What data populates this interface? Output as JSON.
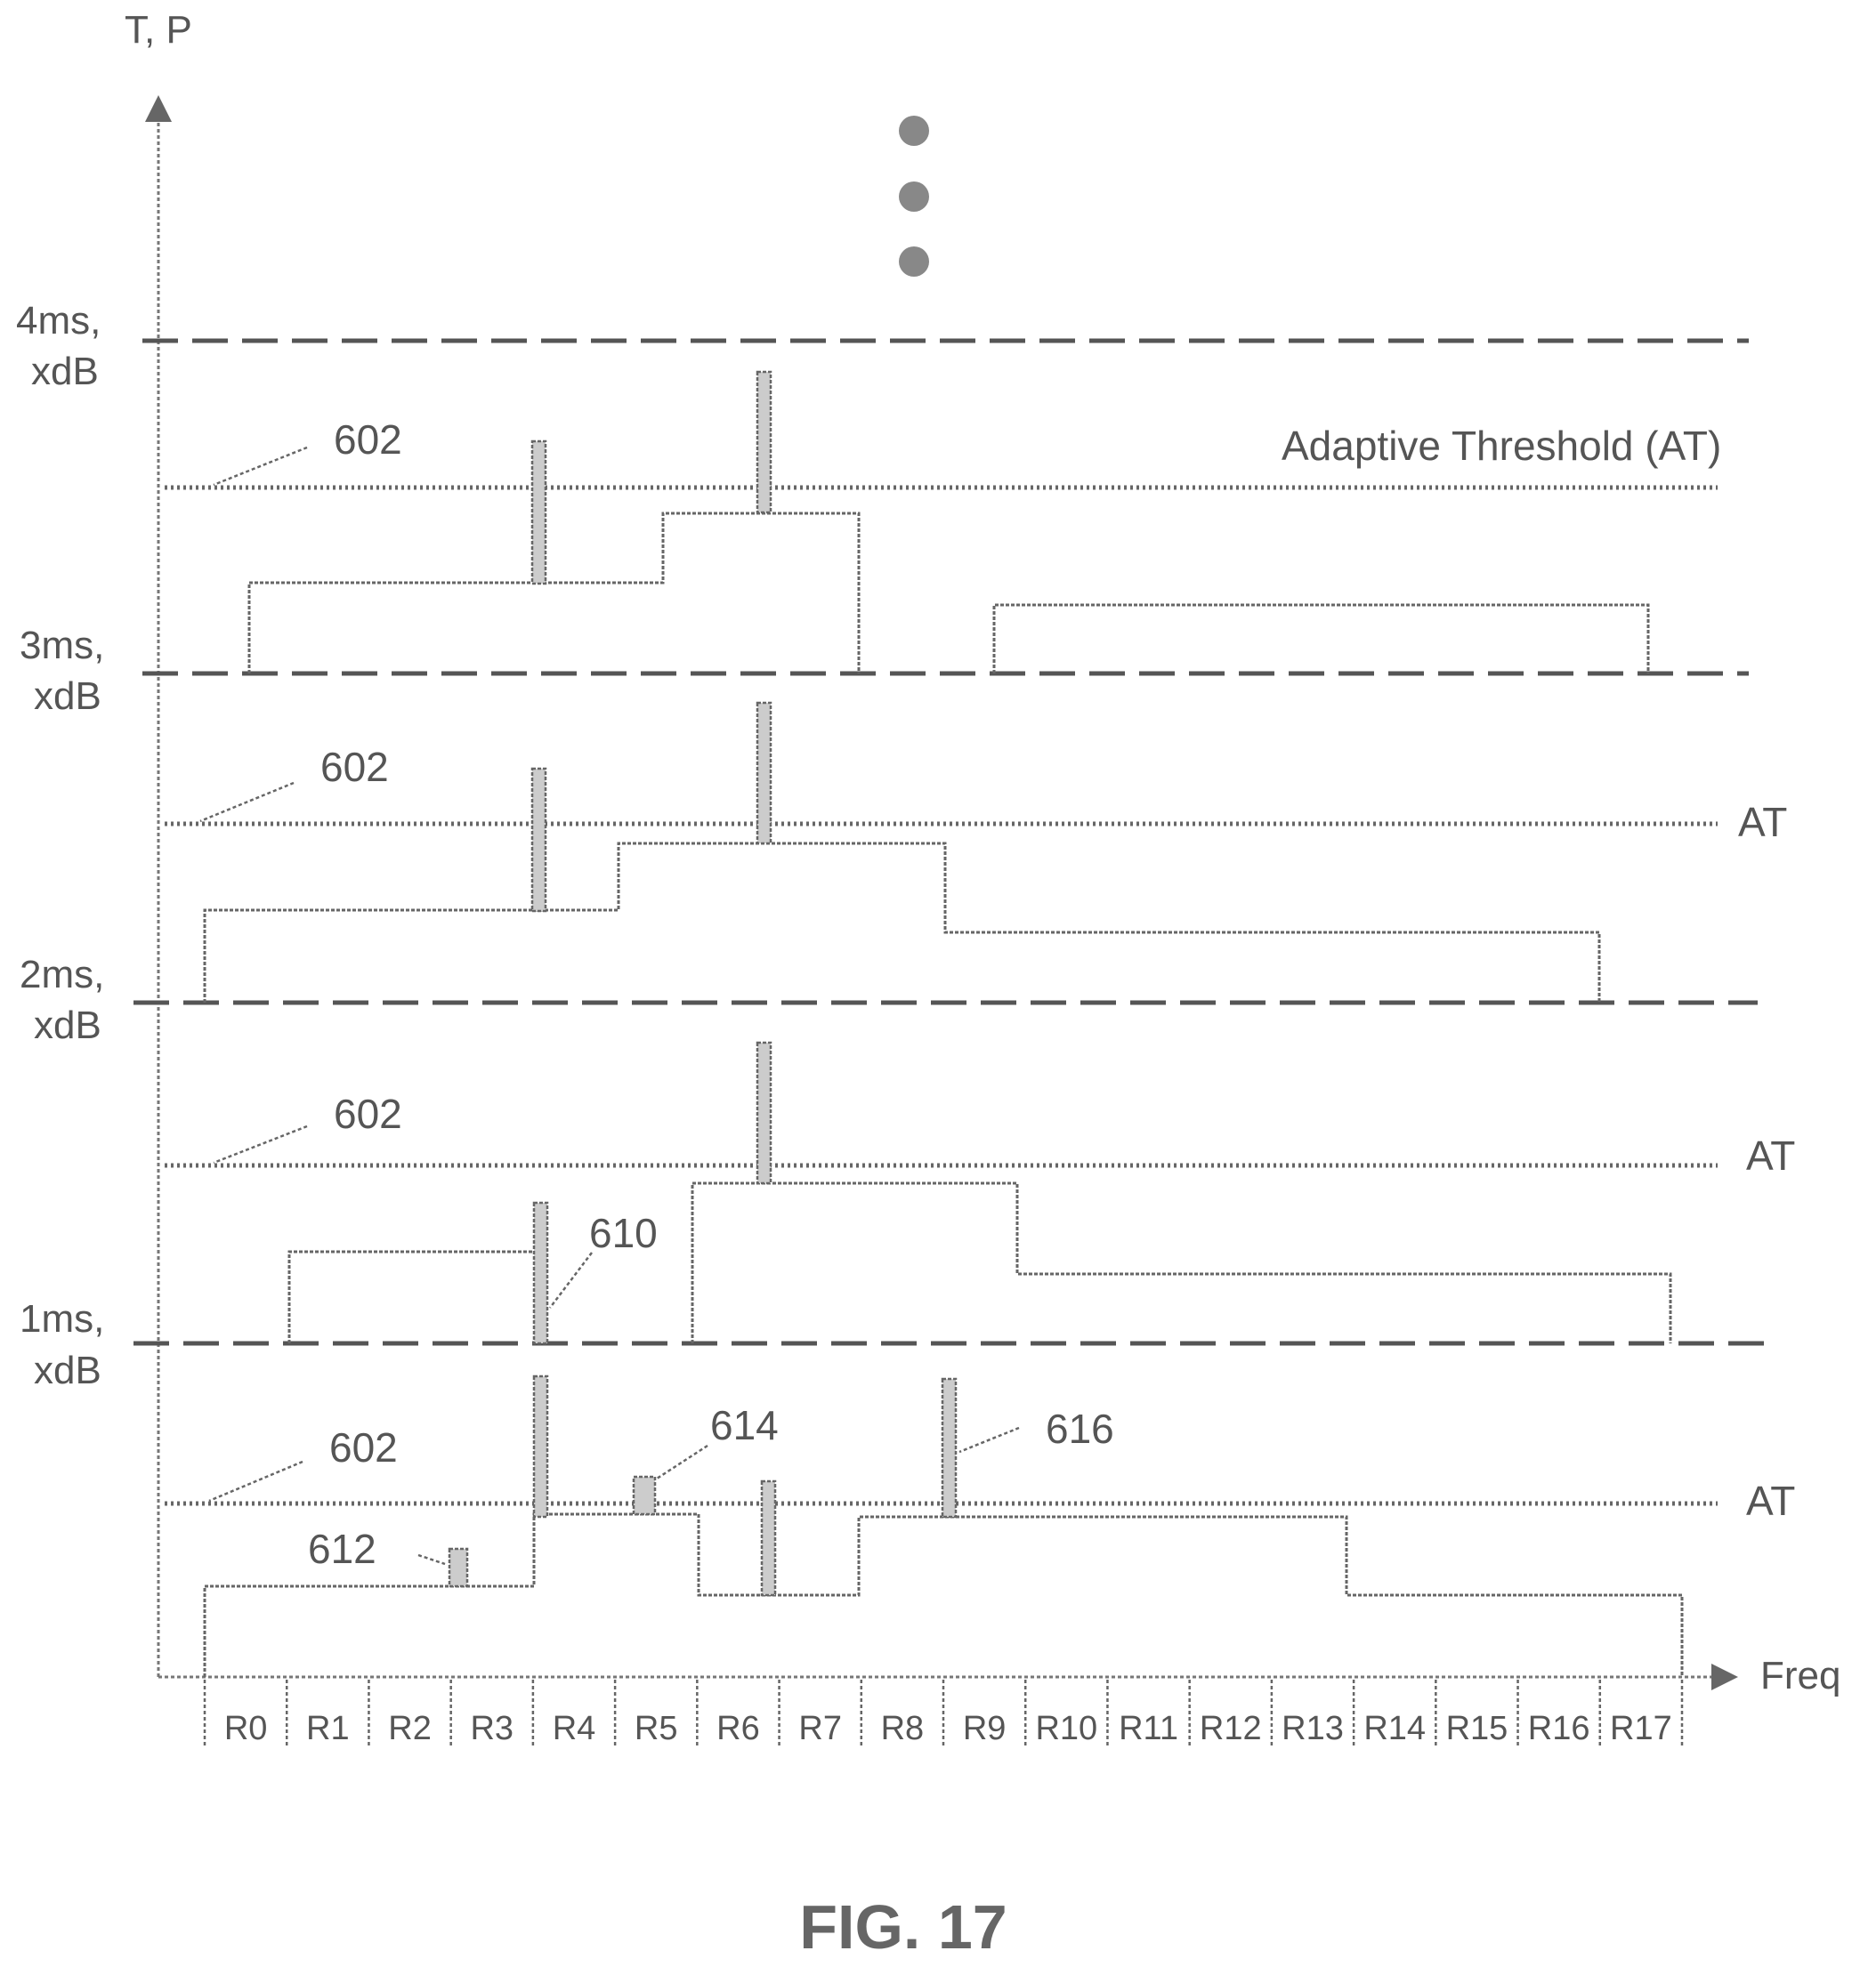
{
  "figure": {
    "caption": "FIG. 17",
    "y_axis_label": "T, P",
    "x_axis_label": "Freq",
    "continuation_dots": 3,
    "colors": {
      "line": "#666666",
      "bar_fill": "#cccccc",
      "text": "#555555"
    }
  },
  "chart_data": {
    "type": "diagram",
    "resource_blocks": [
      "R0",
      "R1",
      "R2",
      "R3",
      "R4",
      "R5",
      "R6",
      "R7",
      "R8",
      "R9",
      "R10",
      "R11",
      "R12",
      "R13",
      "R14",
      "R15",
      "R16",
      "R17"
    ],
    "time_levels": [
      {
        "time": "1ms,",
        "power": "xdB"
      },
      {
        "time": "2ms,",
        "power": "xdB"
      },
      {
        "time": "3ms,",
        "power": "xdB"
      },
      {
        "time": "4ms,",
        "power": "xdB"
      }
    ],
    "threshold_labels": [
      "AT",
      "AT",
      "AT",
      "Adaptive Threshold (AT)"
    ],
    "reference_numerals": {
      "threshold": "602",
      "spike_r4": "610",
      "narrow_r3": "612",
      "narrow_r5": "614",
      "spike_r9": "616"
    }
  }
}
